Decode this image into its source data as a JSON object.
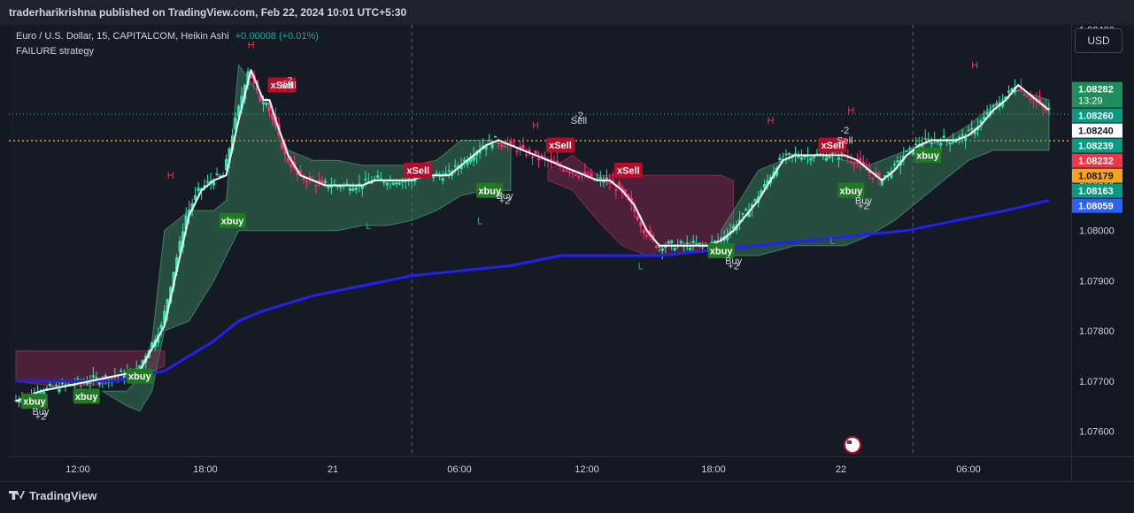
{
  "header": {
    "published_text": "traderharikrishna published on TradingView.com, Feb 22, 2024 10:01 UTC+5:30"
  },
  "legend": {
    "symbol_line": "Euro / U.S. Dollar, 15, CAPITALCOM, Heikin Ashi",
    "change": "+0.00008 (+0.01%)",
    "strategy": "FAILURE strategy"
  },
  "currency_button": "USD",
  "footer": {
    "logo_text": "TradingView"
  },
  "chart_data": {
    "type": "line",
    "title": "",
    "x_ticks": [
      "12:00",
      "18:00",
      "21",
      "06:00",
      "12:00",
      "18:00",
      "22",
      "06:00"
    ],
    "y_ticks": [
      "1.07600",
      "1.07700",
      "1.07800",
      "1.07900",
      "1.08000",
      "1.08100",
      "1.08200",
      "1.08400"
    ],
    "ylim": [
      1.0755,
      1.0841
    ],
    "price_badges": [
      {
        "label": "1.08282",
        "sub": "13:29",
        "value": 1.08282,
        "bg": "#1e8e5a",
        "fg": "#ffffff"
      },
      {
        "label": "1.08260",
        "value": 1.0826,
        "bg": "#089981",
        "fg": "#ffffff"
      },
      {
        "label": "1.08240",
        "value": 1.0824,
        "bg": "#ffffff",
        "fg": "#131722"
      },
      {
        "label": "1.08239",
        "value": 1.08239,
        "bg": "#089981",
        "fg": "#ffffff"
      },
      {
        "label": "1.08232",
        "value": 1.08232,
        "bg": "#f23645",
        "fg": "#ffffff"
      },
      {
        "label": "1.08179",
        "value": 1.08179,
        "bg": "#f7a21b",
        "fg": "#131722"
      },
      {
        "label": "1.08163",
        "value": 1.08163,
        "bg": "#089981",
        "fg": "#ffffff"
      },
      {
        "label": "1.08059",
        "value": 1.08059,
        "bg": "#2962ff",
        "fg": "#ffffff"
      }
    ],
    "series": [
      {
        "name": "",
        "color": "#2222ee",
        "x": [
          0,
          8,
          12,
          14,
          16,
          18,
          20,
          24,
          28,
          32,
          36,
          40,
          44,
          48,
          52,
          56,
          60,
          64,
          68,
          72,
          76,
          80,
          83.5
        ],
        "values": [
          1.077,
          1.077,
          1.0772,
          1.0775,
          1.0778,
          1.0782,
          1.0784,
          1.0787,
          1.0789,
          1.0791,
          1.0792,
          1.0793,
          1.0795,
          1.0795,
          1.0795,
          1.0796,
          1.0797,
          1.0798,
          1.0799,
          1.08,
          1.0802,
          1.0804,
          1.0806
        ]
      },
      {
        "name": "",
        "color": "#ffffff",
        "x": [
          0,
          2,
          4,
          6,
          8,
          10,
          12,
          13,
          14,
          15,
          16,
          17,
          18,
          19,
          20,
          20.5,
          21,
          22,
          23,
          24,
          25,
          26,
          27,
          28,
          29,
          30,
          31,
          32,
          33,
          34,
          35,
          36,
          37,
          38,
          39,
          40,
          41,
          42,
          43,
          44,
          45,
          46,
          47,
          48,
          49,
          50,
          51,
          52,
          53,
          54,
          55,
          56,
          57,
          58,
          59,
          60,
          61,
          62,
          63,
          64,
          65,
          66,
          67,
          68,
          69,
          70,
          71,
          72,
          73,
          74,
          75,
          76,
          77,
          78,
          79,
          80,
          81,
          82,
          83,
          83.5
        ],
        "values": [
          1.0766,
          1.0768,
          1.0769,
          1.077,
          1.0771,
          1.0772,
          1.0781,
          1.0792,
          1.0803,
          1.0808,
          1.081,
          1.0811,
          1.0822,
          1.0832,
          1.0826,
          1.0826,
          1.0822,
          1.0815,
          1.0811,
          1.081,
          1.0809,
          1.0809,
          1.0809,
          1.0809,
          1.081,
          1.081,
          1.081,
          1.081,
          1.0811,
          1.0811,
          1.0811,
          1.0813,
          1.0815,
          1.0817,
          1.0818,
          1.0817,
          1.0816,
          1.0815,
          1.0814,
          1.0813,
          1.0812,
          1.0811,
          1.081,
          1.081,
          1.0808,
          1.0805,
          1.08,
          1.0797,
          1.0797,
          1.0797,
          1.0797,
          1.0797,
          1.0798,
          1.08,
          1.0803,
          1.0806,
          1.081,
          1.0814,
          1.0815,
          1.0815,
          1.0815,
          1.0815,
          1.0815,
          1.0814,
          1.0812,
          1.081,
          1.0812,
          1.0815,
          1.0817,
          1.0818,
          1.0818,
          1.0818,
          1.0819,
          1.0821,
          1.0824,
          1.0826,
          1.0829,
          1.0827,
          1.0825,
          1.0824
        ]
      }
    ],
    "bands": [
      {
        "color": "green",
        "x": [
          7,
          9,
          10,
          11,
          12,
          14,
          16,
          17,
          18,
          20,
          22,
          24,
          26,
          28,
          30,
          32,
          34,
          36,
          38,
          40
        ],
        "upper": [
          1.0768,
          1.0768,
          1.0771,
          1.0778,
          1.08,
          1.0804,
          1.0804,
          1.0806,
          1.0833,
          1.0826,
          1.0816,
          1.0814,
          1.0814,
          1.0813,
          1.0813,
          1.0813,
          1.0814,
          1.0818,
          1.0818,
          1.0817
        ],
        "lower": [
          1.0768,
          1.0765,
          1.0764,
          1.0768,
          1.078,
          1.0782,
          1.079,
          1.0795,
          1.08,
          1.08,
          1.08,
          1.08,
          1.08,
          1.0801,
          1.0801,
          1.0802,
          1.0804,
          1.0807,
          1.0808,
          1.0808
        ]
      },
      {
        "color": "red",
        "x": [
          0,
          3,
          6,
          8,
          9.5,
          11,
          12
        ],
        "upper": [
          1.0776,
          1.0776,
          1.0776,
          1.0776,
          1.0776,
          1.0776,
          1.0776
        ],
        "lower": [
          1.077,
          1.0769,
          1.0769,
          1.077,
          1.0771,
          1.0772,
          1.0773
        ]
      },
      {
        "color": "red",
        "x": [
          43,
          45,
          47,
          49,
          51,
          53,
          55,
          57,
          58
        ],
        "upper": [
          1.0812,
          1.0815,
          1.0811,
          1.0811,
          1.0811,
          1.0811,
          1.0811,
          1.0811,
          1.081
        ],
        "lower": [
          1.081,
          1.0808,
          1.0802,
          1.0797,
          1.0795,
          1.0795,
          1.0796,
          1.0798,
          1.08
        ]
      },
      {
        "color": "green",
        "x": [
          57,
          60,
          63,
          65,
          67,
          69,
          71,
          73,
          75,
          77,
          79,
          81,
          83.5
        ],
        "upper": [
          1.08,
          1.0812,
          1.0815,
          1.0815,
          1.0814,
          1.0813,
          1.0815,
          1.0817,
          1.0818,
          1.0821,
          1.0825,
          1.0828,
          1.0826
        ],
        "lower": [
          1.0795,
          1.0795,
          1.0797,
          1.0797,
          1.0797,
          1.0799,
          1.0802,
          1.0806,
          1.081,
          1.0814,
          1.0816,
          1.0816,
          1.0816
        ]
      }
    ],
    "signals": [
      {
        "text": "xbuy",
        "kind": "xbuy",
        "x": 1.5,
        "price": 1.0766
      },
      {
        "text": "xbuy",
        "kind": "xbuy",
        "x": 5.7,
        "price": 1.0767
      },
      {
        "text": "xbuy",
        "kind": "xbuy",
        "x": 10.0,
        "price": 1.0771
      },
      {
        "text": "xbuy",
        "kind": "xbuy",
        "x": 17.5,
        "price": 1.0802
      },
      {
        "text": "xbuy",
        "kind": "xbuy",
        "x": 38.3,
        "price": 1.0808
      },
      {
        "text": "xbuy",
        "kind": "xbuy",
        "x": 57.0,
        "price": 1.0796
      },
      {
        "text": "xbuy",
        "kind": "xbuy",
        "x": 67.5,
        "price": 1.0808
      },
      {
        "text": "xbuy",
        "kind": "xbuy",
        "x": 73.7,
        "price": 1.0815
      },
      {
        "text": "xSell",
        "kind": "xsell",
        "x": 21.5,
        "price": 1.0829
      },
      {
        "text": "xSell",
        "kind": "xsell",
        "x": 32.5,
        "price": 1.0812
      },
      {
        "text": "xSell",
        "kind": "xsell",
        "x": 44.0,
        "price": 1.0817
      },
      {
        "text": "xSell",
        "kind": "xsell",
        "x": 49.5,
        "price": 1.0812
      },
      {
        "text": "xSell",
        "kind": "xsell",
        "x": 66.0,
        "price": 1.0817
      }
    ],
    "annotations": [
      {
        "text": "Buy",
        "x": 2.0,
        "price": 1.0764
      },
      {
        "text": "+2",
        "x": 2.0,
        "price": 1.0763
      },
      {
        "text": "Buy",
        "x": 39.5,
        "price": 1.0807
      },
      {
        "text": "+2",
        "x": 39.5,
        "price": 1.0806
      },
      {
        "text": "Buy",
        "x": 58.0,
        "price": 1.0794
      },
      {
        "text": "+2",
        "x": 58.0,
        "price": 1.0793
      },
      {
        "text": "Buy",
        "x": 68.5,
        "price": 1.0806
      },
      {
        "text": "+2",
        "x": 68.5,
        "price": 1.0805
      },
      {
        "text": "-2",
        "x": 22.0,
        "price": 1.083
      },
      {
        "text": "Sell",
        "x": 22.0,
        "price": 1.0829
      },
      {
        "text": "-2",
        "x": 45.5,
        "price": 1.0823
      },
      {
        "text": "Sell",
        "x": 45.5,
        "price": 1.0822
      },
      {
        "text": "-2",
        "x": 67.0,
        "price": 1.082
      },
      {
        "text": "Sell",
        "x": 67.0,
        "price": 1.0818
      }
    ],
    "hl_labels": [
      {
        "text": "H",
        "x": 12.5,
        "price": 1.0811,
        "color": "#f23645"
      },
      {
        "text": "H",
        "x": 19.0,
        "price": 1.0837,
        "color": "#f23645"
      },
      {
        "text": "H",
        "x": 42.0,
        "price": 1.0821,
        "color": "#f23645"
      },
      {
        "text": "H",
        "x": 61.0,
        "price": 1.0822,
        "color": "#f23645"
      },
      {
        "text": "H",
        "x": 67.5,
        "price": 1.0824,
        "color": "#f23645"
      },
      {
        "text": "H",
        "x": 77.5,
        "price": 1.0833,
        "color": "#f23645"
      },
      {
        "text": "L",
        "x": 28.5,
        "price": 1.0801,
        "color": "#26a69a"
      },
      {
        "text": "L",
        "x": 37.5,
        "price": 1.0802,
        "color": "#26a69a"
      },
      {
        "text": "L",
        "x": 50.5,
        "price": 1.0793,
        "color": "#26a69a"
      },
      {
        "text": "L",
        "x": 66.0,
        "price": 1.0798,
        "color": "#26a69a"
      }
    ],
    "dashed_lines": [
      {
        "x": 32.0
      },
      {
        "x": 72.5
      }
    ],
    "orange_line": 1.08179,
    "teal_dotted_line": 1.08232,
    "colors": {
      "bull": "#2ee6a8",
      "bear": "#ff2e6c",
      "ema": "#2222ee",
      "smooth": "#ffffff",
      "orange": "#f7a21b"
    }
  }
}
